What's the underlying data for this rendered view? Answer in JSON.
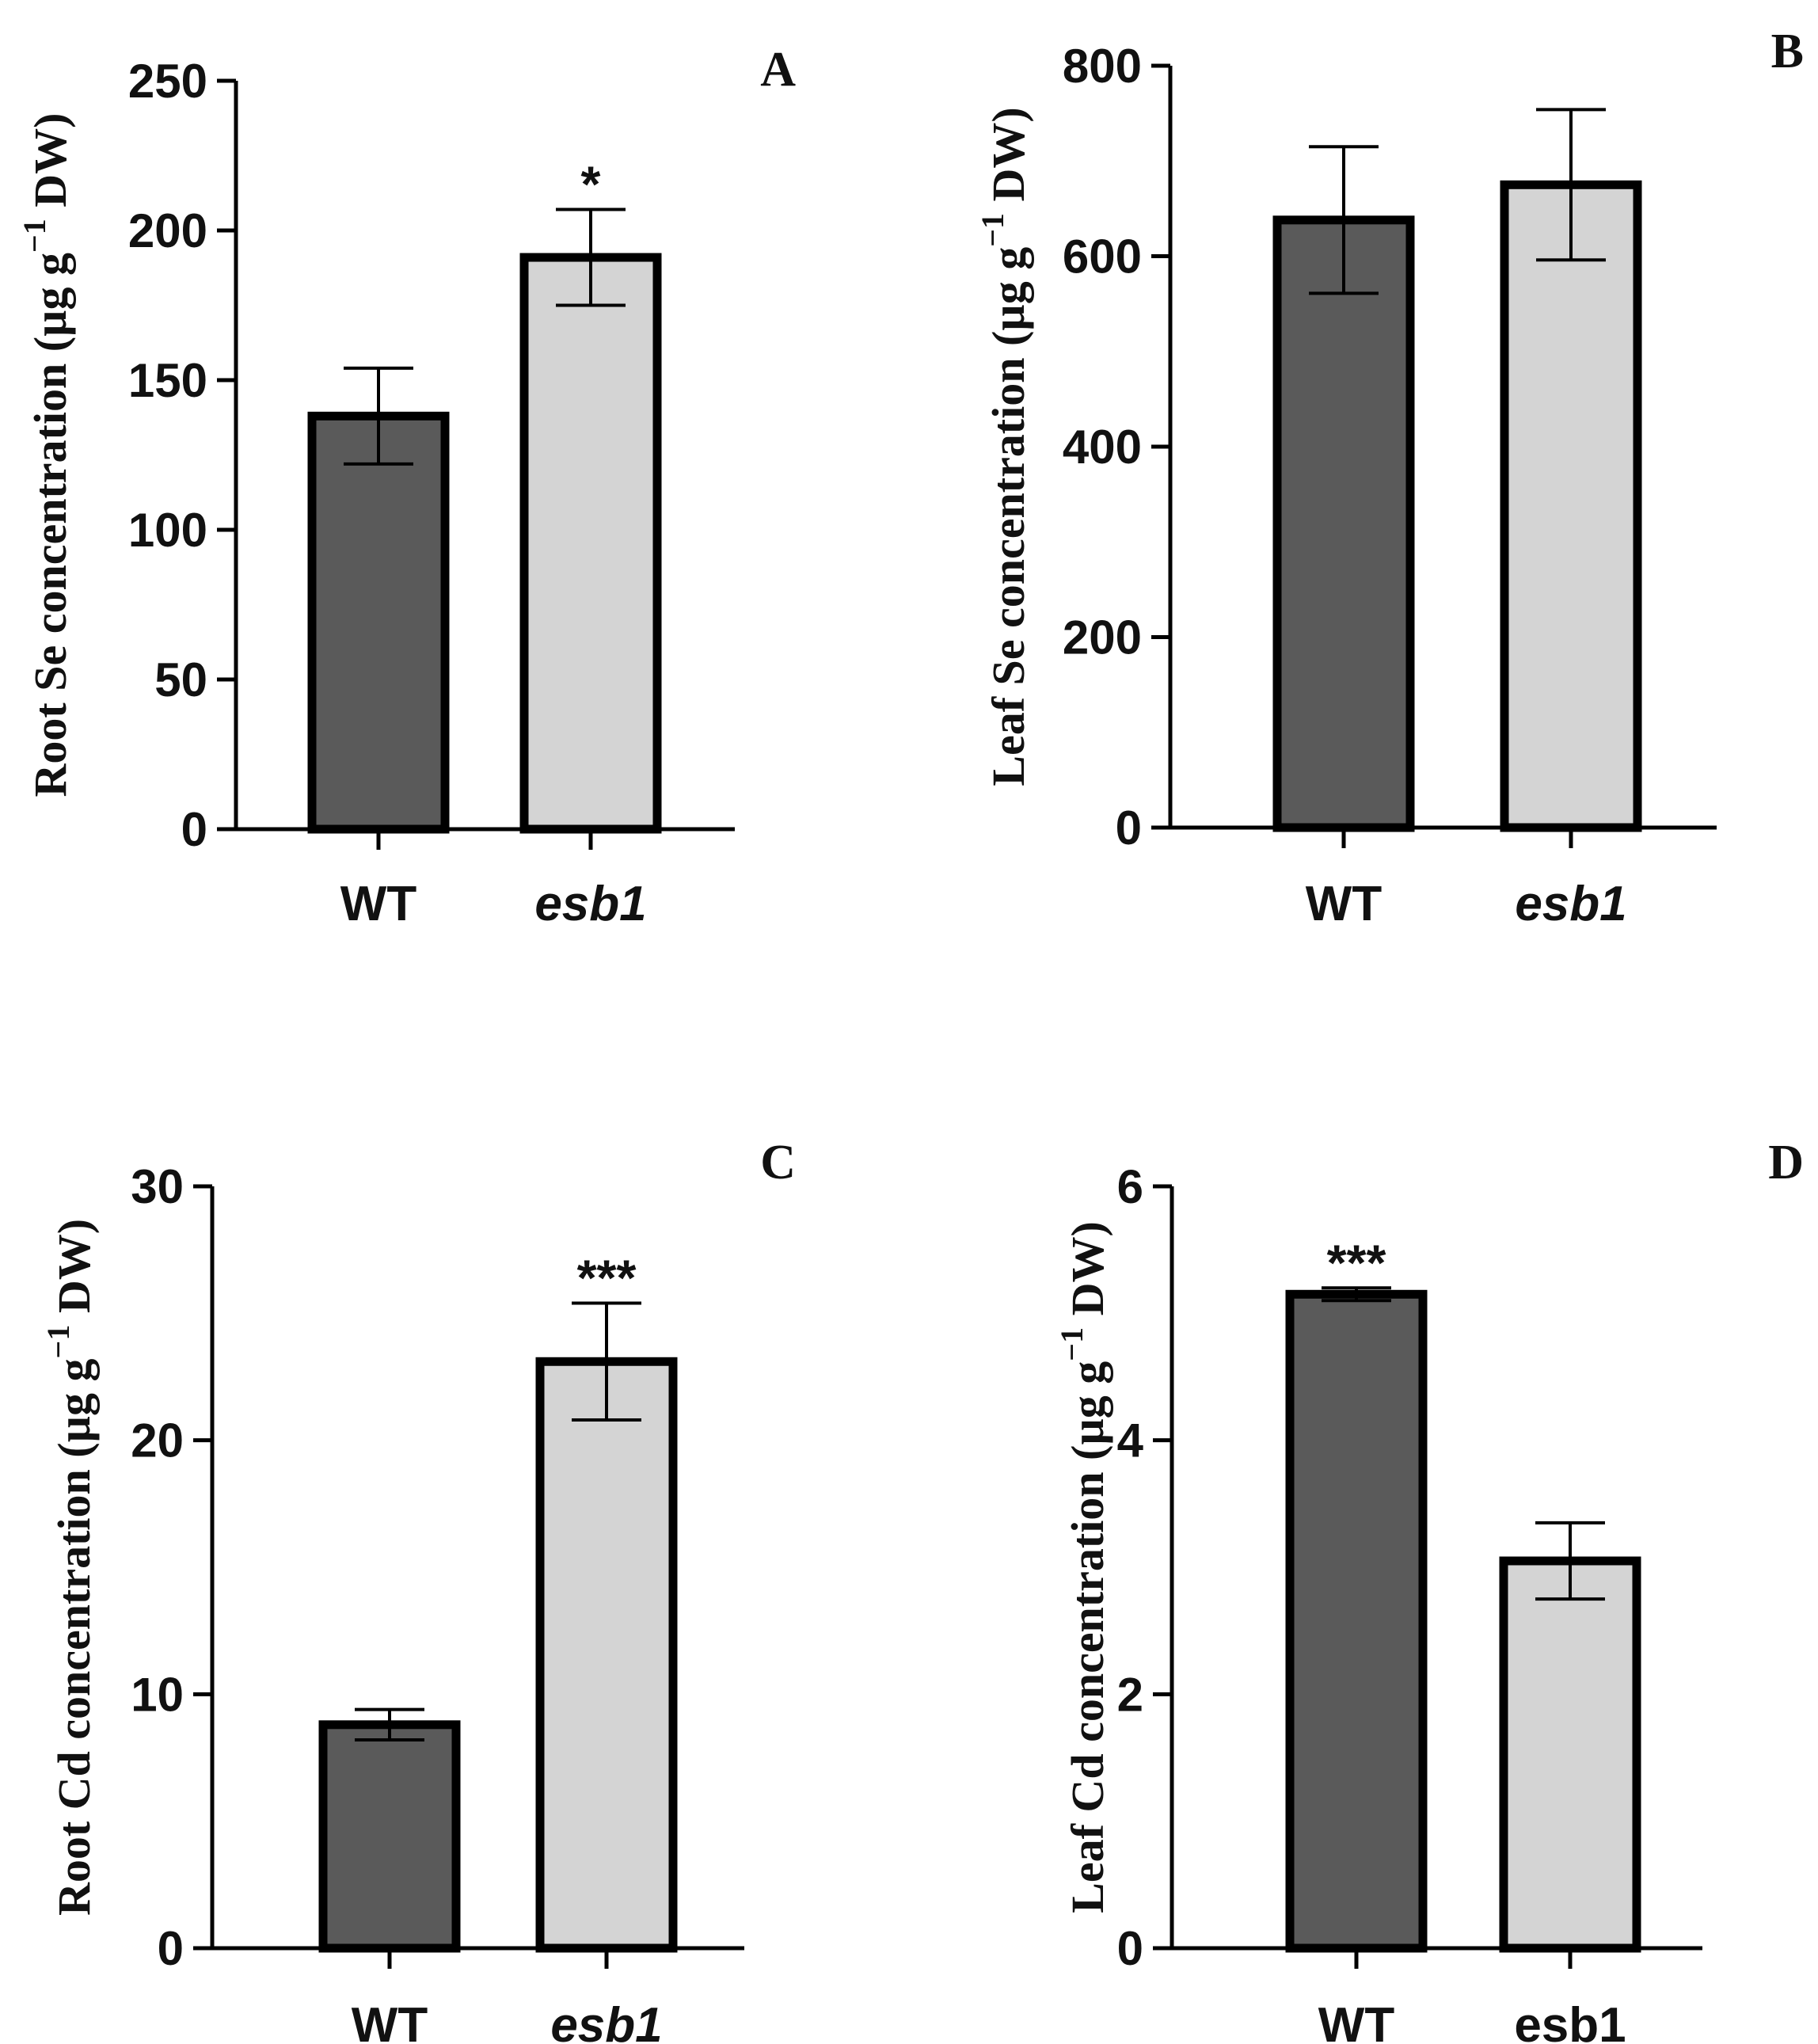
{
  "chart_data": [
    {
      "type": "bar",
      "panel": "A",
      "categories": [
        "WT",
        "esb1"
      ],
      "category_italic": [
        false,
        true
      ],
      "values": [
        138,
        191
      ],
      "errors": [
        16,
        16
      ],
      "significance": [
        "",
        "*"
      ],
      "ylim": [
        0,
        250
      ],
      "yticks": [
        0,
        50,
        100,
        150,
        200,
        250
      ],
      "ylabel": {
        "prefix": "Root Se concentration (µg g",
        "sup": "−1",
        "suffix": " DW)"
      },
      "colors": [
        "#5a5a5a",
        "#d4d4d4"
      ]
    },
    {
      "type": "bar",
      "panel": "B",
      "categories": [
        "WT",
        "esb1"
      ],
      "category_italic": [
        false,
        true
      ],
      "values": [
        638,
        675
      ],
      "errors": [
        77,
        79
      ],
      "significance": [
        "",
        ""
      ],
      "ylim": [
        0,
        800
      ],
      "yticks": [
        0,
        200,
        400,
        600,
        800
      ],
      "ylabel": {
        "prefix": "Leaf Se concentration (µg g",
        "sup": "−1",
        "suffix": " DW)"
      },
      "colors": [
        "#5a5a5a",
        "#d4d4d4"
      ]
    },
    {
      "type": "bar",
      "panel": "C",
      "categories": [
        "WT",
        "esb1"
      ],
      "category_italic": [
        false,
        true
      ],
      "values": [
        8.8,
        23.1
      ],
      "errors": [
        0.6,
        2.3
      ],
      "significance": [
        "",
        "***"
      ],
      "ylim": [
        0,
        30
      ],
      "yticks": [
        0,
        10,
        20,
        30
      ],
      "ylabel": {
        "prefix": "Root Cd concentration (µg g",
        "sup": "−1",
        "suffix": " DW)"
      },
      "colors": [
        "#5a5a5a",
        "#d4d4d4"
      ]
    },
    {
      "type": "bar",
      "panel": "D",
      "categories": [
        "WT",
        "esb1"
      ],
      "category_italic": [
        false,
        false
      ],
      "values": [
        5.15,
        3.05
      ],
      "errors": [
        0.05,
        0.3
      ],
      "significance": [
        "***",
        ""
      ],
      "ylim": [
        0,
        6
      ],
      "yticks": [
        0,
        2,
        4,
        6
      ],
      "ylabel": {
        "prefix": "Leaf Cd concentration (µg g",
        "sup": "−1",
        "suffix": " DW)"
      },
      "colors": [
        "#5a5a5a",
        "#d4d4d4"
      ]
    }
  ]
}
